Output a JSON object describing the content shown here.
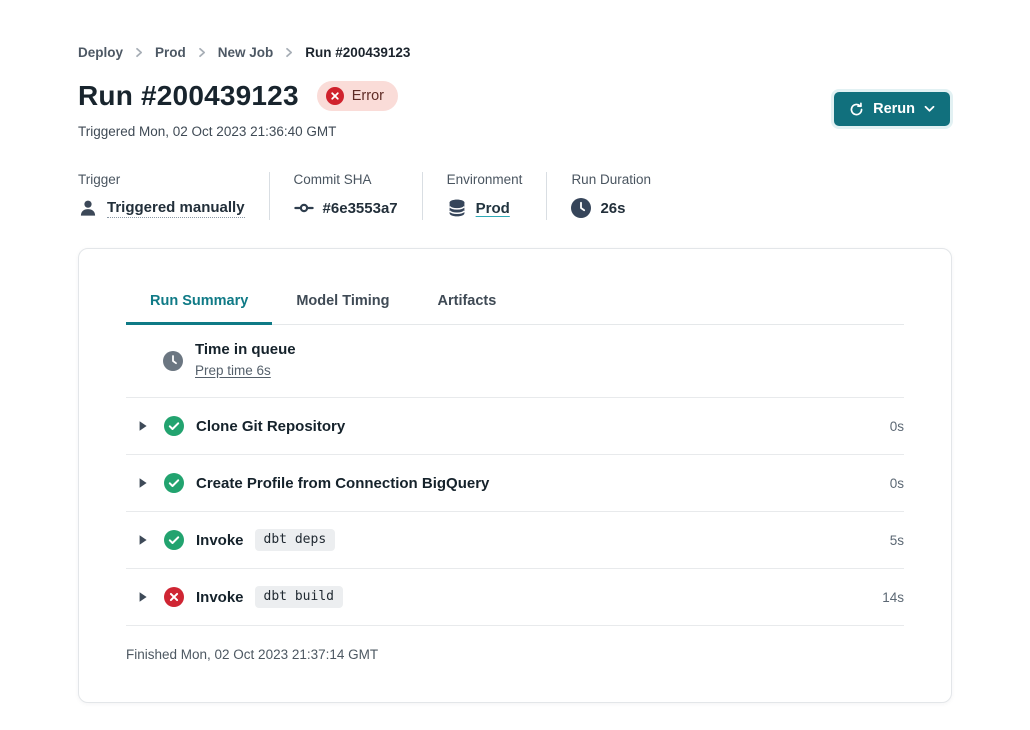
{
  "breadcrumb": {
    "items": [
      "Deploy",
      "Prod",
      "New Job",
      "Run #200439123"
    ]
  },
  "header": {
    "title": "Run #200439123",
    "status_badge": "Error",
    "triggered": "Triggered Mon, 02 Oct 2023 21:36:40 GMT",
    "rerun_label": "Rerun"
  },
  "meta": {
    "trigger": {
      "label": "Trigger",
      "value": "Triggered manually"
    },
    "commit": {
      "label": "Commit SHA",
      "value": "#6e3553a7"
    },
    "environment": {
      "label": "Environment",
      "value": "Prod"
    },
    "duration": {
      "label": "Run Duration",
      "value": "26s"
    }
  },
  "tabs": [
    {
      "label": "Run Summary",
      "active": true
    },
    {
      "label": "Model Timing",
      "active": false
    },
    {
      "label": "Artifacts",
      "active": false
    }
  ],
  "steps": {
    "queue": {
      "title": "Time in queue",
      "link": "Prep time 6s"
    },
    "rows": [
      {
        "title": "Clone Git Repository",
        "command": "",
        "status": "success",
        "duration": "0s"
      },
      {
        "title": "Create Profile from Connection BigQuery",
        "command": "",
        "status": "success",
        "duration": "0s"
      },
      {
        "title": "Invoke",
        "command": "dbt deps",
        "status": "success",
        "duration": "5s"
      },
      {
        "title": "Invoke",
        "command": "dbt build",
        "status": "error",
        "duration": "14s"
      }
    ],
    "finished": "Finished Mon, 02 Oct 2023 21:37:14 GMT"
  },
  "icons": {
    "rerun": "refresh-icon",
    "rerun_menu": "chevron-down-icon",
    "badge": "error-circle-icon",
    "trigger": "person-icon",
    "commit": "git-commit-icon",
    "environment": "database-icon",
    "duration": "clock-icon",
    "queue": "clock-icon",
    "separator": "chevron-right-icon",
    "expand": "caret-right-icon",
    "success": "check-circle-icon",
    "error": "x-circle-icon"
  },
  "colors": {
    "accent_teal": "#0f7a86",
    "button_teal": "#11707d",
    "success_green": "#22a36f",
    "error_red": "#cf2533",
    "badge_bg": "#fadcd8",
    "badge_text": "#5f2b25",
    "icon_slate": "#3c4858"
  }
}
